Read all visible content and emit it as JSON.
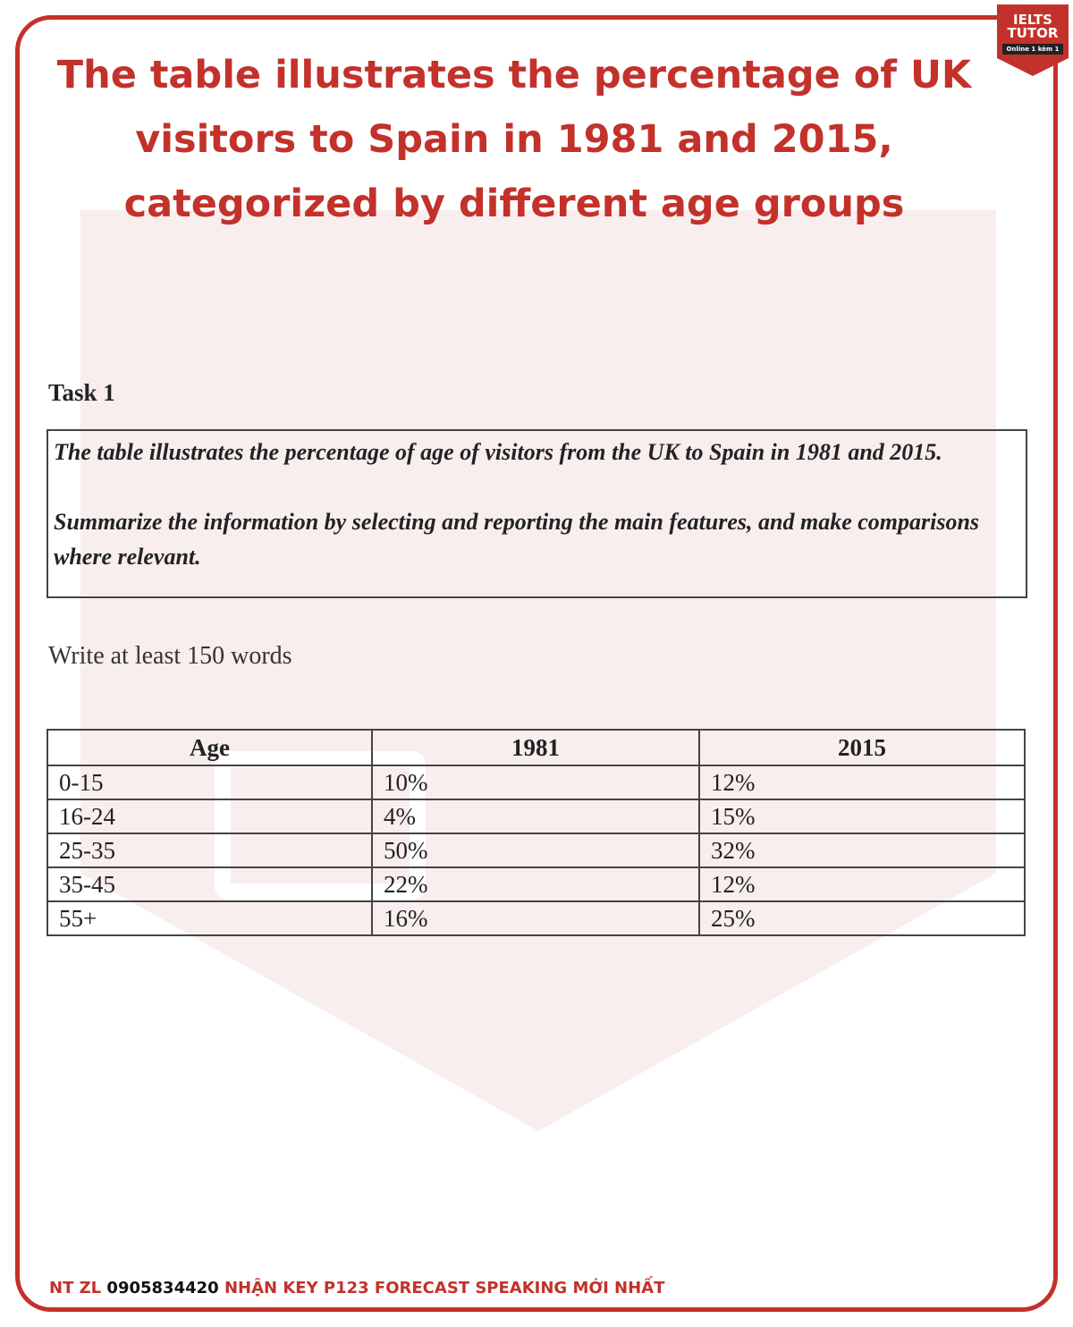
{
  "title": "The table illustrates the percentage of UK visitors to Spain in 1981 and 2015, categorized by different age groups",
  "title_lines": [
    "The table illustrates the percentage of UK",
    "visitors to Spain in 1981 and 2015,",
    "categorized by different age groups"
  ],
  "logo": {
    "line1": "IELTS",
    "line2": "TUTOR",
    "line3": "Online 1 kèm 1"
  },
  "watermark": {
    "text1": "IELTS",
    "text2": "TUTOR",
    "text3": "Online 1 kèm 1"
  },
  "task": {
    "heading": "Task 1",
    "prompt1": "The table illustrates the percentage of age of visitors from the UK to Spain in 1981 and 2015.",
    "prompt2": "Summarize the information by selecting and reporting the main features, and make comparisons where relevant.",
    "instruction": "Write at least 150 words"
  },
  "table": {
    "headers": [
      "Age",
      "1981",
      "2015"
    ],
    "rows": [
      [
        "0-15",
        "10%",
        "12%"
      ],
      [
        "16-24",
        "4%",
        "15%"
      ],
      [
        "25-35",
        "50%",
        "32%"
      ],
      [
        "35-45",
        "22%",
        "12%"
      ],
      [
        "55+",
        "16%",
        "25%"
      ]
    ]
  },
  "footer": {
    "prefix": "NT ZL",
    "phone": "0905834420",
    "text": "NHẬN KEY P123 FORECAST SPEAKING MỚI NHẤT"
  },
  "colors": {
    "brand": "#c3312b"
  }
}
